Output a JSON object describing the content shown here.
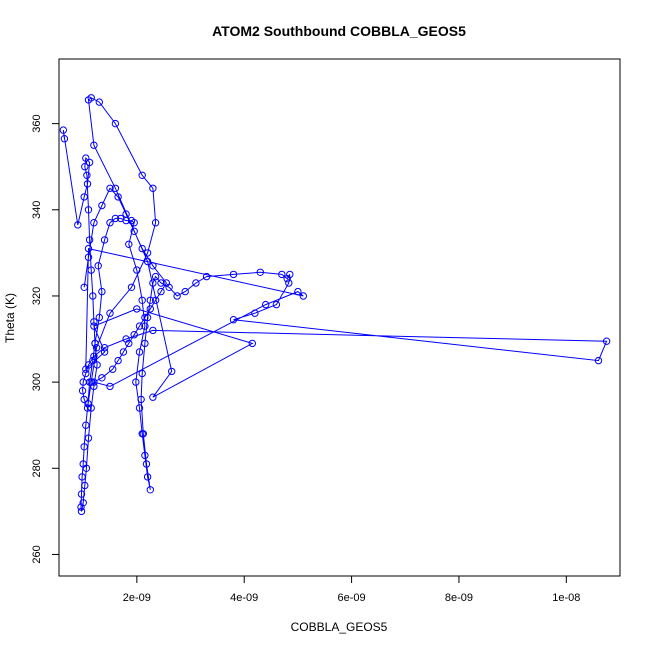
{
  "chart_data": {
    "type": "line",
    "title": "ATOM2 Southbound COBBLA_GEOS5",
    "xlabel": "COBBLA_GEOS5",
    "ylabel": "Theta (K)",
    "xlim": [
      5.5e-10,
      1.1e-08
    ],
    "ylim": [
      255,
      375
    ],
    "xticks": [
      2e-09,
      4e-09,
      6e-09,
      8e-09,
      1e-08
    ],
    "xtick_labels": [
      "2e-09",
      "4e-09",
      "6e-09",
      "8e-09",
      "1e-08"
    ],
    "yticks": [
      260,
      280,
      300,
      320,
      340,
      360
    ],
    "ytick_labels": [
      "260",
      "280",
      "300",
      "320",
      "340",
      "360"
    ],
    "grid": false,
    "legend": "none",
    "marker": "open-circle",
    "color": "#0000ff",
    "series": [
      {
        "x": [
          6.5e-10,
          6.3e-10,
          9e-10,
          1.02e-09,
          1.08e-09,
          1.12e-09,
          1.05e-09,
          1.03e-09,
          1.07e-09,
          1.1e-09,
          1.12e-09,
          1.15e-09,
          1.18e-09,
          1.2e-09,
          1.22e-09,
          1.18e-09,
          1.12e-09,
          1.09e-09,
          1.05e-09,
          1.02e-09,
          1e-09,
          9.8e-10,
          9.7e-10,
          9.6e-10,
          9.7e-10,
          1e-09,
          1.03e-09,
          1.06e-09,
          1.1e-09,
          1.15e-09,
          1.2e-09,
          1.26e-09,
          1.22e-09,
          1.3e-09,
          1.35e-09,
          1.28e-09,
          1.4e-09,
          1.5e-09,
          1.6e-09,
          1.7e-09,
          1.8e-09,
          1.9e-09,
          1.95e-09,
          1.85e-09,
          2e-09,
          2.1e-09,
          2.15e-09,
          2.05e-09,
          1.98e-09,
          2.05e-09,
          2.1e-09,
          2.15e-09,
          2.2e-09,
          2.25e-09,
          2.18e-09,
          2.12e-09,
          2.08e-09,
          2.1e-09,
          2.15e-09,
          2.2e-09,
          2.25e-09,
          2.3e-09,
          2.35e-09,
          2.45e-09,
          2.6e-09,
          2.75e-09,
          2.9e-09,
          3.1e-09,
          3.3e-09,
          3.8e-09,
          4.3e-09,
          4.7e-09,
          4.8e-09,
          4.85e-09,
          4.83e-09,
          4.6e-09,
          4.2e-09,
          3.8e-09,
          1.06e-08,
          1.075e-08,
          2.3e-09,
          1.8e-09,
          1.4e-09,
          1.2e-09,
          1.1e-09,
          1.05e-09,
          1e-09,
          9.9e-10,
          1.02e-09,
          1.08e-09,
          1.15e-09,
          1.25e-09,
          1.5e-09,
          1.9e-09,
          2.2e-09,
          2.35e-09,
          2.3e-09,
          2.1e-09,
          1.6e-09,
          1.3e-09,
          1.15e-09,
          1.1e-09,
          1.2e-09,
          1.6e-09,
          2.2e-09,
          2.65e-09,
          2.3e-09,
          4.15e-09,
          2e-09,
          1.2e-09,
          1.4e-09,
          1.05e-09,
          1.1e-09,
          5.1e-09,
          5e-09,
          4.4e-09,
          1.5e-09,
          1.2e-09,
          1.35e-09,
          1.55e-09,
          1.65e-09,
          1.75e-09,
          1.85e-09,
          1.95e-09,
          2.05e-09,
          2.15e-09,
          2.25e-09,
          2.35e-09,
          2.45e-09,
          2.55e-09,
          2.3e-09,
          2.1e-09,
          1.95e-09,
          1.8e-09,
          1.65e-09,
          1.5e-09,
          1.35e-09,
          1.2e-09,
          1.1e-09,
          1.02e-09
        ],
        "y": [
          356.5,
          358.5,
          336.5,
          343,
          346,
          351,
          352,
          350,
          348,
          340,
          333,
          326,
          320,
          314,
          309,
          305,
          300,
          295,
          290,
          285,
          281,
          278,
          274,
          271,
          270,
          272,
          276,
          280,
          287,
          294,
          299,
          304,
          309,
          315,
          321,
          327,
          333,
          337,
          338,
          338,
          337.5,
          337.5,
          337,
          332,
          326,
          319,
          313,
          307,
          300,
          294,
          288,
          283,
          278,
          275,
          281,
          288,
          296,
          302,
          309,
          315,
          319,
          323,
          324.5,
          323,
          322,
          320,
          321,
          323,
          324.5,
          325,
          325.5,
          325,
          324,
          325,
          323,
          318,
          316,
          314.5,
          305,
          309.5,
          312,
          310,
          308,
          306,
          304,
          302,
          300,
          298,
          296,
          294,
          300,
          308,
          316,
          322,
          330,
          337,
          345,
          348,
          360,
          365,
          366,
          365.5,
          355,
          345,
          328,
          302.5,
          296.5,
          309,
          317,
          313,
          307,
          303,
          331,
          320,
          321,
          318,
          299,
          300,
          301,
          303,
          305,
          307,
          309,
          311,
          313,
          315,
          317,
          319,
          321,
          323,
          327,
          331,
          335,
          339,
          343,
          345,
          341,
          337,
          329,
          322
        ]
      }
    ]
  }
}
